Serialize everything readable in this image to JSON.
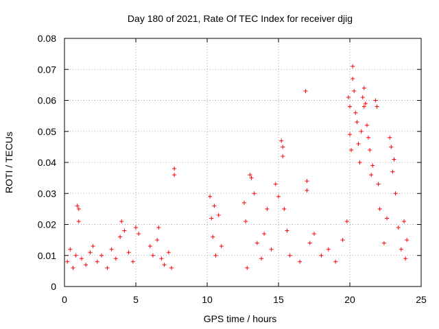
{
  "chart_data": {
    "type": "scatter",
    "title": "Day 180 of 2021, Rate Of TEC Index for receiver djig",
    "xlabel": "GPS time / hours",
    "ylabel": "ROTI / TECUs",
    "xlim": [
      0,
      25
    ],
    "ylim": [
      0,
      0.08
    ],
    "xticks": [
      0,
      5,
      10,
      15,
      20,
      25
    ],
    "xtick_labels": [
      "0",
      "5",
      "10",
      "15",
      "20",
      "25"
    ],
    "yticks": [
      0,
      0.01,
      0.02,
      0.03,
      0.04,
      0.05,
      0.06,
      0.07,
      0.08
    ],
    "ytick_labels": [
      "0",
      "0.01",
      "0.02",
      "0.03",
      "0.04",
      "0.05",
      "0.06",
      "0.07",
      "0.08"
    ],
    "grid": true,
    "marker": "plus",
    "color": "#ff0000",
    "series": [
      {
        "name": "ROTI",
        "points": [
          [
            0.2,
            0.008
          ],
          [
            0.4,
            0.012
          ],
          [
            0.6,
            0.006
          ],
          [
            0.8,
            0.01
          ],
          [
            0.9,
            0.026
          ],
          [
            1.0,
            0.025
          ],
          [
            1.0,
            0.021
          ],
          [
            1.2,
            0.009
          ],
          [
            1.5,
            0.007
          ],
          [
            1.8,
            0.011
          ],
          [
            2.0,
            0.013
          ],
          [
            2.3,
            0.008
          ],
          [
            2.6,
            0.01
          ],
          [
            3.0,
            0.006
          ],
          [
            3.3,
            0.012
          ],
          [
            3.6,
            0.009
          ],
          [
            3.9,
            0.016
          ],
          [
            4.0,
            0.021
          ],
          [
            4.2,
            0.018
          ],
          [
            4.5,
            0.011
          ],
          [
            4.8,
            0.008
          ],
          [
            5.0,
            0.019
          ],
          [
            5.2,
            0.017
          ],
          [
            6.0,
            0.013
          ],
          [
            6.2,
            0.01
          ],
          [
            6.5,
            0.015
          ],
          [
            6.6,
            0.019
          ],
          [
            6.8,
            0.009
          ],
          [
            7.0,
            0.007
          ],
          [
            7.3,
            0.011
          ],
          [
            7.5,
            0.006
          ],
          [
            7.7,
            0.038
          ],
          [
            7.7,
            0.036
          ],
          [
            10.2,
            0.029
          ],
          [
            10.3,
            0.022
          ],
          [
            10.4,
            0.016
          ],
          [
            10.5,
            0.026
          ],
          [
            10.6,
            0.01
          ],
          [
            10.8,
            0.023
          ],
          [
            11.0,
            0.013
          ],
          [
            12.6,
            0.027
          ],
          [
            12.7,
            0.021
          ],
          [
            12.8,
            0.006
          ],
          [
            13.0,
            0.036
          ],
          [
            13.1,
            0.035
          ],
          [
            13.3,
            0.03
          ],
          [
            13.5,
            0.014
          ],
          [
            13.8,
            0.009
          ],
          [
            14.0,
            0.017
          ],
          [
            14.2,
            0.025
          ],
          [
            14.5,
            0.012
          ],
          [
            14.8,
            0.033
          ],
          [
            15.0,
            0.029
          ],
          [
            15.2,
            0.047
          ],
          [
            15.3,
            0.045
          ],
          [
            15.3,
            0.042
          ],
          [
            15.4,
            0.025
          ],
          [
            15.6,
            0.018
          ],
          [
            15.8,
            0.01
          ],
          [
            16.5,
            0.008
          ],
          [
            16.9,
            0.063
          ],
          [
            17.0,
            0.034
          ],
          [
            17.0,
            0.031
          ],
          [
            17.2,
            0.014
          ],
          [
            17.5,
            0.017
          ],
          [
            18.0,
            0.01
          ],
          [
            18.5,
            0.012
          ],
          [
            19.0,
            0.008
          ],
          [
            19.5,
            0.015
          ],
          [
            19.8,
            0.021
          ],
          [
            19.9,
            0.061
          ],
          [
            20.0,
            0.058
          ],
          [
            20.0,
            0.049
          ],
          [
            20.1,
            0.044
          ],
          [
            20.2,
            0.071
          ],
          [
            20.2,
            0.067
          ],
          [
            20.3,
            0.063
          ],
          [
            20.4,
            0.056
          ],
          [
            20.5,
            0.053
          ],
          [
            20.6,
            0.046
          ],
          [
            20.7,
            0.04
          ],
          [
            20.8,
            0.05
          ],
          [
            20.9,
            0.061
          ],
          [
            21.0,
            0.058
          ],
          [
            21.0,
            0.064
          ],
          [
            21.1,
            0.059
          ],
          [
            21.2,
            0.052
          ],
          [
            21.3,
            0.048
          ],
          [
            21.4,
            0.044
          ],
          [
            21.5,
            0.036
          ],
          [
            21.6,
            0.039
          ],
          [
            21.8,
            0.06
          ],
          [
            21.9,
            0.058
          ],
          [
            22.0,
            0.033
          ],
          [
            22.1,
            0.025
          ],
          [
            22.4,
            0.014
          ],
          [
            22.6,
            0.022
          ],
          [
            22.8,
            0.048
          ],
          [
            22.9,
            0.045
          ],
          [
            23.0,
            0.037
          ],
          [
            23.1,
            0.041
          ],
          [
            23.2,
            0.03
          ],
          [
            23.4,
            0.019
          ],
          [
            23.6,
            0.012
          ],
          [
            23.8,
            0.021
          ],
          [
            23.9,
            0.009
          ],
          [
            24.0,
            0.015
          ]
        ]
      }
    ]
  }
}
